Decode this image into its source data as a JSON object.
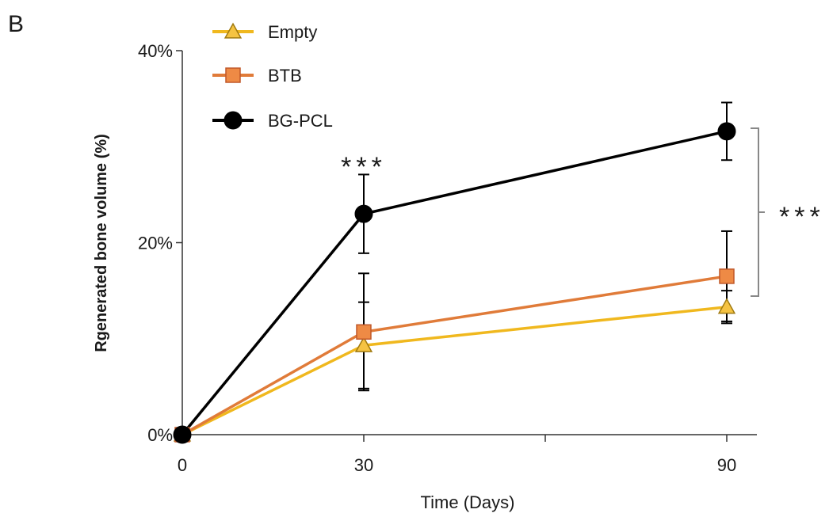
{
  "panel_label": "B",
  "chart_data": {
    "type": "line",
    "xlabel": "Time (Days)",
    "ylabel": "Rgenerated bone volume (%)",
    "x_ticks": [
      0,
      30,
      90
    ],
    "y_ticks": [
      "0%",
      "20%",
      "40%"
    ],
    "ylim": [
      0,
      40
    ],
    "legend_position": "top-left",
    "grid": false,
    "series": [
      {
        "name": "Empty",
        "marker": "triangle",
        "color": "#f0b81e",
        "x": [
          0,
          30,
          90
        ],
        "y": [
          0,
          9.3,
          13.3
        ],
        "err": [
          0,
          4.5,
          1.7
        ]
      },
      {
        "name": "BTB",
        "marker": "square",
        "color": "#e07b39",
        "x": [
          0,
          30,
          90
        ],
        "y": [
          0,
          10.7,
          16.5
        ],
        "err": [
          0,
          6.1,
          4.7
        ]
      },
      {
        "name": "BG-PCL",
        "marker": "circle",
        "color": "#000000",
        "x": [
          0,
          30,
          90
        ],
        "y": [
          0,
          23.0,
          31.6
        ],
        "err": [
          0,
          4.1,
          3.0
        ]
      }
    ],
    "annotations": [
      {
        "text": "***",
        "at_x": 30
      },
      {
        "text": "***",
        "bracket_y": [
          16.5,
          31.6
        ]
      }
    ]
  }
}
